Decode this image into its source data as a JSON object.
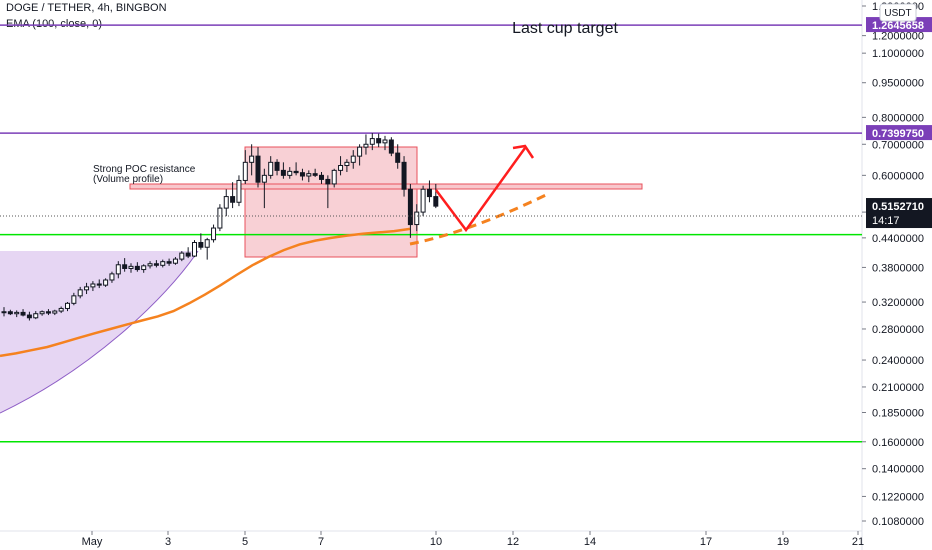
{
  "header": {
    "symbol_line": "DOGE / TETHER, 4h, BINGBON",
    "indicator_line": "EMA (100, close, 0)",
    "currency_button": "USDT"
  },
  "annotations": {
    "cup_target": "Last cup target",
    "poc_line1": "Strong POC resistance",
    "poc_line2": "(Volume profile)"
  },
  "chart_data": {
    "type": "candlestick",
    "y_scale": "log",
    "ylim": [
      0.104,
      1.38
    ],
    "y_ticks": [
      "1.3900000",
      "1.2000000",
      "1.1000000",
      "0.9500000",
      "0.8000000",
      "0.7000000",
      "0.6000000",
      "0.5000000",
      "0.4400000",
      "0.3800000",
      "0.3200000",
      "0.2800000",
      "0.2400000",
      "0.2100000",
      "0.1850000",
      "0.1600000",
      "0.1400000",
      "0.1220000",
      "0.1080000"
    ],
    "x_ticks": [
      "May",
      "3",
      "5",
      "7",
      "10",
      "12",
      "14",
      "17",
      "19",
      "21"
    ],
    "price_labels": [
      {
        "text": "1.2645658",
        "value": 1.2645658,
        "color": "#7b3fb8"
      },
      {
        "text": "0.7399750",
        "value": 0.739975,
        "color": "#7b3fb8"
      },
      {
        "text": "0.5152710",
        "value": 0.515271,
        "color": "#131722"
      },
      {
        "text": "14:17",
        "value": null,
        "color": "#131722"
      }
    ],
    "horizontal_lines": [
      {
        "value": 1.2645658,
        "color": "#7b3fb8"
      },
      {
        "value": 0.739975,
        "color": "#7b3fb8"
      },
      {
        "value": 0.447,
        "color": "#00e600"
      },
      {
        "value": 0.16,
        "color": "#00e600"
      }
    ],
    "candles": [
      [
        0.305,
        0.312,
        0.298,
        0.305
      ],
      [
        0.305,
        0.308,
        0.3,
        0.302
      ],
      [
        0.302,
        0.307,
        0.297,
        0.304
      ],
      [
        0.304,
        0.309,
        0.298,
        0.3
      ],
      [
        0.3,
        0.305,
        0.292,
        0.296
      ],
      [
        0.296,
        0.306,
        0.294,
        0.302
      ],
      [
        0.302,
        0.307,
        0.299,
        0.305
      ],
      [
        0.305,
        0.309,
        0.3,
        0.303
      ],
      [
        0.303,
        0.308,
        0.3,
        0.306
      ],
      [
        0.306,
        0.313,
        0.303,
        0.31
      ],
      [
        0.31,
        0.32,
        0.306,
        0.318
      ],
      [
        0.318,
        0.335,
        0.315,
        0.33
      ],
      [
        0.33,
        0.345,
        0.326,
        0.34
      ],
      [
        0.34,
        0.352,
        0.333,
        0.345
      ],
      [
        0.345,
        0.355,
        0.338,
        0.35
      ],
      [
        0.35,
        0.358,
        0.343,
        0.348
      ],
      [
        0.348,
        0.36,
        0.345,
        0.357
      ],
      [
        0.357,
        0.372,
        0.352,
        0.368
      ],
      [
        0.368,
        0.392,
        0.36,
        0.385
      ],
      [
        0.385,
        0.398,
        0.372,
        0.378
      ],
      [
        0.378,
        0.388,
        0.37,
        0.382
      ],
      [
        0.382,
        0.39,
        0.372,
        0.376
      ],
      [
        0.376,
        0.386,
        0.37,
        0.383
      ],
      [
        0.383,
        0.392,
        0.378,
        0.387
      ],
      [
        0.387,
        0.394,
        0.38,
        0.384
      ],
      [
        0.384,
        0.395,
        0.38,
        0.391
      ],
      [
        0.391,
        0.397,
        0.383,
        0.388
      ],
      [
        0.388,
        0.4,
        0.385,
        0.396
      ],
      [
        0.396,
        0.412,
        0.392,
        0.408
      ],
      [
        0.408,
        0.42,
        0.398,
        0.402
      ],
      [
        0.402,
        0.435,
        0.4,
        0.43
      ],
      [
        0.43,
        0.45,
        0.415,
        0.42
      ],
      [
        0.42,
        0.44,
        0.395,
        0.436
      ],
      [
        0.436,
        0.47,
        0.43,
        0.462
      ],
      [
        0.462,
        0.52,
        0.455,
        0.51
      ],
      [
        0.51,
        0.56,
        0.49,
        0.54
      ],
      [
        0.54,
        0.58,
        0.51,
        0.525
      ],
      [
        0.525,
        0.6,
        0.515,
        0.585
      ],
      [
        0.585,
        0.68,
        0.575,
        0.64
      ],
      [
        0.64,
        0.7,
        0.6,
        0.66
      ],
      [
        0.66,
        0.69,
        0.565,
        0.58
      ],
      [
        0.58,
        0.62,
        0.51,
        0.6
      ],
      [
        0.6,
        0.66,
        0.59,
        0.64
      ],
      [
        0.64,
        0.65,
        0.6,
        0.615
      ],
      [
        0.615,
        0.64,
        0.59,
        0.6
      ],
      [
        0.6,
        0.625,
        0.59,
        0.612
      ],
      [
        0.612,
        0.64,
        0.6,
        0.608
      ],
      [
        0.608,
        0.62,
        0.585,
        0.598
      ],
      [
        0.598,
        0.615,
        0.58,
        0.605
      ],
      [
        0.605,
        0.62,
        0.595,
        0.6
      ],
      [
        0.6,
        0.61,
        0.575,
        0.588
      ],
      [
        0.588,
        0.6,
        0.51,
        0.575
      ],
      [
        0.575,
        0.62,
        0.565,
        0.615
      ],
      [
        0.615,
        0.66,
        0.6,
        0.63
      ],
      [
        0.63,
        0.65,
        0.61,
        0.64
      ],
      [
        0.64,
        0.68,
        0.62,
        0.66
      ],
      [
        0.66,
        0.7,
        0.63,
        0.69
      ],
      [
        0.69,
        0.735,
        0.665,
        0.7
      ],
      [
        0.7,
        0.74,
        0.68,
        0.72
      ],
      [
        0.72,
        0.738,
        0.69,
        0.705
      ],
      [
        0.705,
        0.73,
        0.68,
        0.715
      ],
      [
        0.715,
        0.725,
        0.66,
        0.67
      ],
      [
        0.67,
        0.7,
        0.62,
        0.64
      ],
      [
        0.64,
        0.66,
        0.54,
        0.56
      ],
      [
        0.56,
        0.575,
        0.44,
        0.47
      ],
      [
        0.47,
        0.52,
        0.455,
        0.5
      ],
      [
        0.5,
        0.57,
        0.49,
        0.56
      ],
      [
        0.56,
        0.585,
        0.525,
        0.54
      ],
      [
        0.54,
        0.575,
        0.51,
        0.515
      ]
    ],
    "ema100": [
      0.245,
      0.248,
      0.252,
      0.256,
      0.262,
      0.268,
      0.274,
      0.28,
      0.286,
      0.292,
      0.298,
      0.306,
      0.318,
      0.332,
      0.348,
      0.366,
      0.384,
      0.4,
      0.414,
      0.426,
      0.434,
      0.44,
      0.445,
      0.449,
      0.452,
      0.455,
      0.46
    ]
  }
}
